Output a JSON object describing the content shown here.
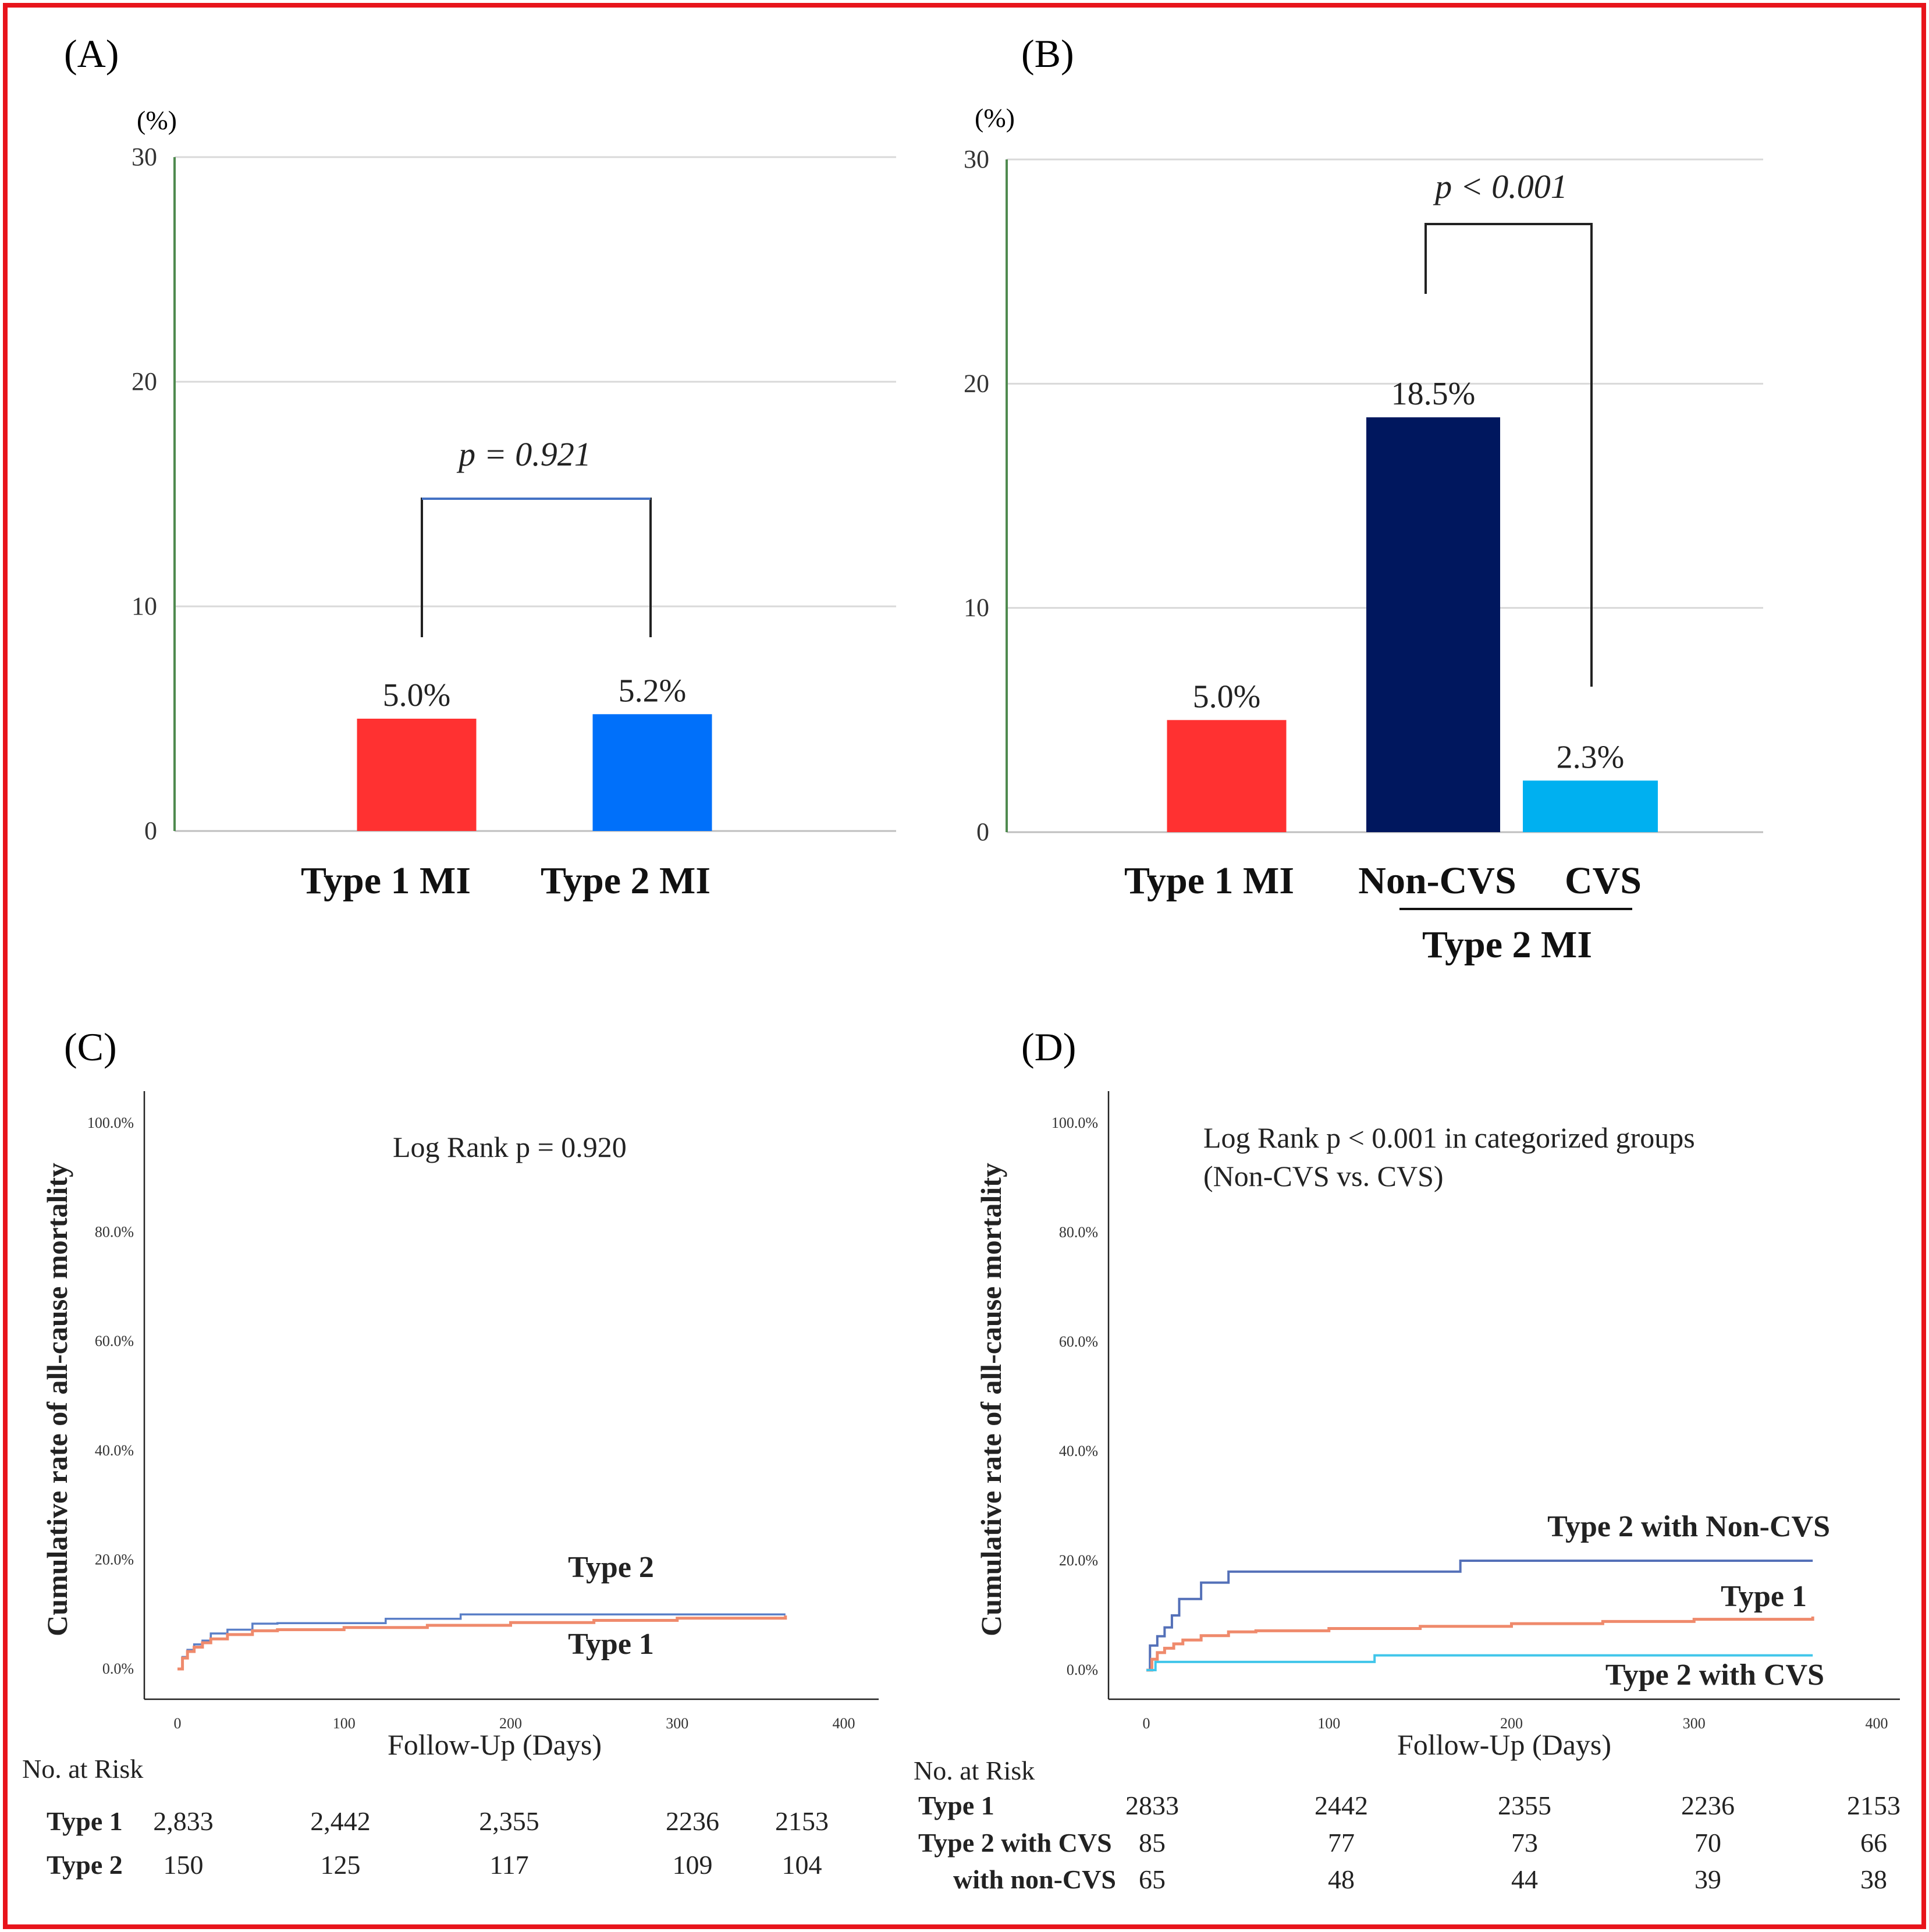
{
  "colors": {
    "border": "#e8141b",
    "type1": "#ff3131",
    "type2": "#0070fa",
    "noncvs": "#00175e",
    "cvs": "#00b0f0",
    "km_type1": "#ef8a6c",
    "km_type2": "#5a7fc7",
    "km_noncvs": "#5470b8",
    "km_cvs": "#41c6ea",
    "grid": "#d9d9d9",
    "axis_green": "#4f8a4f"
  },
  "panels": {
    "a": {
      "label": "(A)",
      "unit": "(%)",
      "pvalue": "p = 0.921",
      "xlabels": [
        "Type 1 MI",
        "Type 2 MI"
      ]
    },
    "b": {
      "label": "(B)",
      "unit": "(%)",
      "pvalue": "p < 0.001",
      "xlabels": [
        "Type 1 MI",
        "Non-CVS",
        "CVS"
      ],
      "group_label": "Type 2 MI"
    },
    "c": {
      "label": "(C)",
      "ylabel": "Cumulative rate of all-cause mortality",
      "xlabel": "Follow-Up (Days)",
      "annotation": "Log Rank p = 0.920",
      "series_labels": [
        "Type 2",
        "Type 1"
      ],
      "risk_title": "No. at Risk",
      "risk_rows": [
        {
          "name": "Type 1",
          "values": [
            "2,833",
            "2,442",
            "2,355",
            "2236",
            "2153"
          ]
        },
        {
          "name": "Type 2",
          "values": [
            "150",
            "125",
            "117",
            "109",
            "104"
          ]
        }
      ]
    },
    "d": {
      "label": "(D)",
      "ylabel": "Cumulative rate of all-cause mortality",
      "xlabel": "Follow-Up (Days)",
      "annotation_line1": "Log Rank p < 0.001 in categorized groups",
      "annotation_line2": "(Non-CVS vs. CVS)",
      "series_labels": [
        "Type 2 with Non-CVS",
        "Type 1",
        "Type 2 with CVS"
      ],
      "risk_title": "No. at Risk",
      "risk_rows": [
        {
          "name": "Type 1",
          "values": [
            "2833",
            "2442",
            "2355",
            "2236",
            "2153"
          ]
        },
        {
          "name": "Type 2 with CVS",
          "values": [
            "85",
            "77",
            "73",
            "70",
            "66"
          ]
        },
        {
          "name": "with non-CVS",
          "values": [
            "65",
            "48",
            "44",
            "39",
            "38"
          ]
        }
      ]
    }
  },
  "chart_data": [
    {
      "type": "bar",
      "panel": "A",
      "categories": [
        "Type 1 MI",
        "Type 2 MI"
      ],
      "values": [
        5.0,
        5.2
      ],
      "data_labels": [
        "5.0%",
        "5.2%"
      ],
      "ylabel": "(%)",
      "ylim": [
        0,
        30
      ],
      "yticks": [
        0,
        10,
        20,
        30
      ],
      "grid": true,
      "annotation": "p = 0.921"
    },
    {
      "type": "bar",
      "panel": "B",
      "categories": [
        "Type 1 MI",
        "Non-CVS",
        "CVS"
      ],
      "values": [
        5.0,
        18.5,
        2.3
      ],
      "data_labels": [
        "5.0%",
        "18.5%",
        "2.3%"
      ],
      "ylabel": "(%)",
      "ylim": [
        0,
        30
      ],
      "yticks": [
        0,
        10,
        20,
        30
      ],
      "grid": true,
      "annotation": "p < 0.001"
    },
    {
      "type": "line",
      "panel": "C",
      "title": "",
      "xlabel": "Follow-Up (Days)",
      "ylabel": "Cumulative rate of all-cause mortality",
      "xlim": [
        0,
        400
      ],
      "xticks": [
        0,
        100,
        200,
        300,
        400
      ],
      "ylim": [
        0,
        100
      ],
      "yticks": [
        "0.0%",
        "20.0%",
        "40.0%",
        "60.0%",
        "80.0%",
        "100.0%"
      ],
      "series": [
        {
          "name": "Type 2",
          "x": [
            0,
            3,
            6,
            10,
            15,
            20,
            30,
            45,
            60,
            125,
            170,
            250,
            365
          ],
          "y": [
            0,
            2.2,
            3.5,
            4.5,
            5.2,
            6.5,
            7.2,
            8.3,
            8.4,
            9.2,
            10.0,
            10.0,
            10.0
          ]
        },
        {
          "name": "Type 1",
          "x": [
            0,
            3,
            6,
            10,
            15,
            20,
            30,
            45,
            60,
            100,
            150,
            200,
            250,
            300,
            365
          ],
          "y": [
            0,
            2.0,
            3.2,
            4.0,
            4.8,
            5.5,
            6.3,
            7.0,
            7.2,
            7.6,
            8.0,
            8.5,
            8.9,
            9.3,
            9.8
          ]
        }
      ]
    },
    {
      "type": "line",
      "panel": "D",
      "title": "",
      "xlabel": "Follow-Up (Days)",
      "ylabel": "Cumulative rate of all-cause mortality",
      "xlim": [
        0,
        400
      ],
      "xticks": [
        0,
        100,
        200,
        300,
        400
      ],
      "ylim": [
        0,
        100
      ],
      "yticks": [
        "0.0%",
        "20.0%",
        "40.0%",
        "60.0%",
        "80.0%",
        "100.0%"
      ],
      "series": [
        {
          "name": "Type 2 with Non-CVS",
          "x": [
            0,
            2,
            6,
            10,
            14,
            18,
            24,
            30,
            36,
            45,
            100,
            172,
            250,
            365
          ],
          "y": [
            0,
            4.5,
            6.2,
            7.8,
            10.0,
            13.0,
            13.0,
            16.0,
            16.0,
            18.0,
            18.0,
            20.0,
            20.0,
            20.0
          ]
        },
        {
          "name": "Type 1",
          "x": [
            0,
            3,
            6,
            10,
            15,
            20,
            30,
            45,
            60,
            100,
            150,
            200,
            250,
            300,
            365
          ],
          "y": [
            0,
            2.0,
            3.2,
            4.0,
            4.8,
            5.5,
            6.3,
            7.0,
            7.2,
            7.6,
            8.0,
            8.5,
            8.9,
            9.3,
            9.8
          ]
        },
        {
          "name": "Type 2 with CVS",
          "x": [
            0,
            5,
            60,
            125,
            200,
            365
          ],
          "y": [
            0,
            1.5,
            1.5,
            2.7,
            2.7,
            2.7
          ]
        }
      ]
    }
  ]
}
